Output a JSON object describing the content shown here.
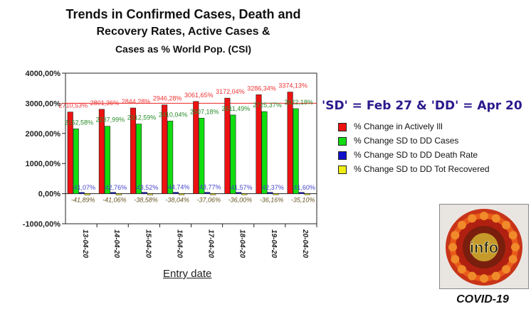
{
  "chart_data": {
    "type": "bar",
    "title": [
      "Trends in Confirmed Cases, Death and",
      "Recovery Rates, Active Cases &",
      "Cases as % World Pop. (CSI)"
    ],
    "xlabel": "Entry date",
    "ylabel": "",
    "ylim": [
      -1000,
      4000
    ],
    "yticks": [
      4000,
      3000,
      2000,
      1000,
      0,
      -1000
    ],
    "ytick_labels": [
      "4000,00%",
      "3000,00%",
      "2000,00%",
      "1000,00%",
      "0,00%",
      "-1000,00%"
    ],
    "categories": [
      "13-04-20",
      "14-04-20",
      "15-04-20",
      "16-04-20",
      "17-04-20",
      "18-04-20",
      "19-04-20",
      "20-04-20"
    ],
    "reference_line": 3000,
    "series": [
      {
        "name": "% Change in Actively Ill",
        "color": "#ee1111",
        "label_color": "#ee3333",
        "values": [
          2710.53,
          2801.36,
          2844.28,
          2946.28,
          3061.65,
          3172.04,
          3286.34,
          3374.13
        ],
        "labels": [
          "2710,53%",
          "2801,36%",
          "2844,28%",
          "2946,28%",
          "3061,65%",
          "3172,04%",
          "3286,34%",
          "3374,13%"
        ]
      },
      {
        "name": "% Change SD to DD Cases",
        "color": "#11dd11",
        "label_color": "#2a8c2a",
        "values": [
          2152.58,
          2237.99,
          2312.59,
          2410.04,
          2507.18,
          2611.49,
          2725.37,
          2822.18
        ],
        "labels": [
          "2152,58%",
          "2237,99%",
          "2312,59%",
          "2410,04%",
          "2507,18%",
          "2611,49%",
          "2725,37%",
          "2822,18%"
        ]
      },
      {
        "name": "% Change SD to DD Death Rate",
        "color": "#1111cc",
        "label_color": "#4444cc",
        "values": [
          41.07,
          42.76,
          43.52,
          44.74,
          43.77,
          41.57,
          42.37,
          41.6
        ],
        "labels": [
          "41,07%",
          "42,76%",
          "43,52%",
          "44,74%",
          "43,77%",
          "41,57%",
          "42,37%",
          "41,60%"
        ]
      },
      {
        "name": "% Change SD to DD Tot Recovered",
        "color": "#eeee11",
        "label_color": "#665522",
        "values": [
          -41.89,
          -41.06,
          -38.58,
          -38.04,
          -37.06,
          -36.0,
          -36.16,
          -35.1
        ],
        "labels": [
          "-41,89%",
          "-41,06%",
          "-38,58%",
          "-38,04%",
          "-37,06%",
          "-36,00%",
          "-36,16%",
          "-35,10%"
        ]
      }
    ]
  },
  "note": "'SD' = Feb 27 & 'DD' = Apr 20",
  "logo": {
    "caption": "COVID-19",
    "text": "info"
  }
}
